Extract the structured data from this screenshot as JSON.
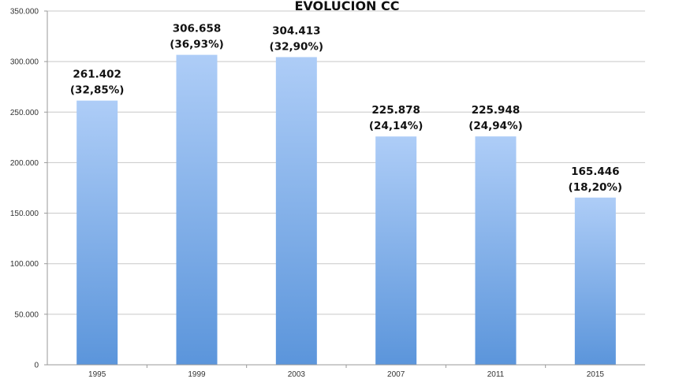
{
  "chart_data": {
    "type": "bar",
    "title": "EVOLUCIÓN CC",
    "xlabel": "",
    "ylabel": "",
    "categories": [
      "1995",
      "1999",
      "2003",
      "2007",
      "2011",
      "2015"
    ],
    "values": [
      261402,
      306658,
      304413,
      225878,
      225948,
      165446
    ],
    "value_labels": [
      "261.402",
      "306.658",
      "304.413",
      "225.878",
      "225.948",
      "165.446"
    ],
    "percent_labels": [
      "(32,85%)",
      "(36,93%)",
      "(32,90%)",
      "(24,14%)",
      "(24,94%)",
      "(18,20%)"
    ],
    "ylim": [
      0,
      350000
    ],
    "yticks": [
      0,
      50000,
      100000,
      150000,
      200000,
      250000,
      300000,
      350000
    ],
    "ytick_labels": [
      "0",
      "50.000",
      "100.000",
      "150.000",
      "200.000",
      "250.000",
      "300.000",
      "350.000"
    ],
    "grid": true,
    "legend": "none",
    "colors": {
      "bar_top": "#aecdf7",
      "bar_bottom": "#5b95db",
      "grid": "#c8c8c8",
      "axis": "#9a9a9a"
    }
  }
}
